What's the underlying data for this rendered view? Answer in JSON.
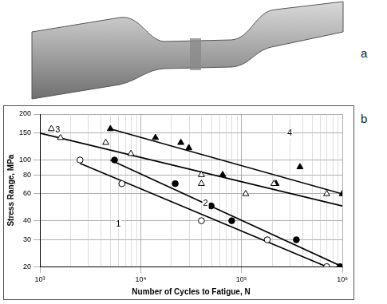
{
  "panel_labels": [
    "a",
    "b"
  ],
  "chart_data": {
    "type": "scatter",
    "x_label": "Number of Cycles to Fatigue, N",
    "y_label": "Stress Range, MPa",
    "log": true,
    "grid": true,
    "xlim": [
      1000,
      1000000
    ],
    "xticks": [
      {
        "value": 1000,
        "label": "10³"
      },
      {
        "value": 10000,
        "label": "10⁴"
      },
      {
        "value": 100000,
        "label": "10⁵"
      },
      {
        "value": 1000000,
        "label": "10⁶"
      }
    ],
    "ylim": [
      20,
      200
    ],
    "yticks": [
      20,
      30,
      40,
      60,
      80,
      100,
      150,
      200
    ],
    "series": [
      {
        "name": "1",
        "color": "#000000",
        "marker": "open_circle",
        "line_style": "solid",
        "x": [
          2500,
          6500,
          40000,
          180000,
          700000
        ],
        "values": [
          100,
          70,
          40,
          30,
          20
        ],
        "fit": {
          "x": [
            2500,
            700000
          ],
          "values": [
            95,
            20
          ]
        },
        "name_at": {
          "x": 6000,
          "y": 38
        }
      },
      {
        "name": "2",
        "color": "#000000",
        "marker": "filled_circle",
        "line_style": "solid",
        "x": [
          5500,
          22000,
          50000,
          80000,
          350000,
          950000
        ],
        "values": [
          100,
          70,
          50,
          40,
          30,
          20
        ],
        "fit": {
          "x": [
            5000,
            1000000
          ],
          "values": [
            100,
            20
          ]
        },
        "name_at": {
          "x": 44000,
          "y": 52
        }
      },
      {
        "name": "3",
        "color": "#000000",
        "marker": "open_triangle",
        "line_style": "solid",
        "x": [
          1300,
          1600,
          4500,
          8000,
          40000,
          40000,
          110000,
          210000,
          700000
        ],
        "values": [
          160,
          140,
          130,
          110,
          80,
          70,
          60,
          70,
          60
        ],
        "fit": {
          "x": [
            1000,
            1000000
          ],
          "values": [
            150,
            50
          ]
        },
        "name_at": {
          "x": 1500,
          "y": 158
        }
      },
      {
        "name": "4",
        "color": "#000000",
        "marker": "filled_triangle",
        "line_style": "solid",
        "x": [
          5000,
          14000,
          25000,
          30000,
          65000,
          220000,
          380000,
          1000000
        ],
        "values": [
          160,
          140,
          130,
          120,
          80,
          70,
          90,
          60
        ],
        "fit": {
          "x": [
            5000,
            1000000
          ],
          "values": [
            160,
            60
          ]
        },
        "name_at": {
          "x": 300000,
          "y": 150
        }
      }
    ]
  }
}
